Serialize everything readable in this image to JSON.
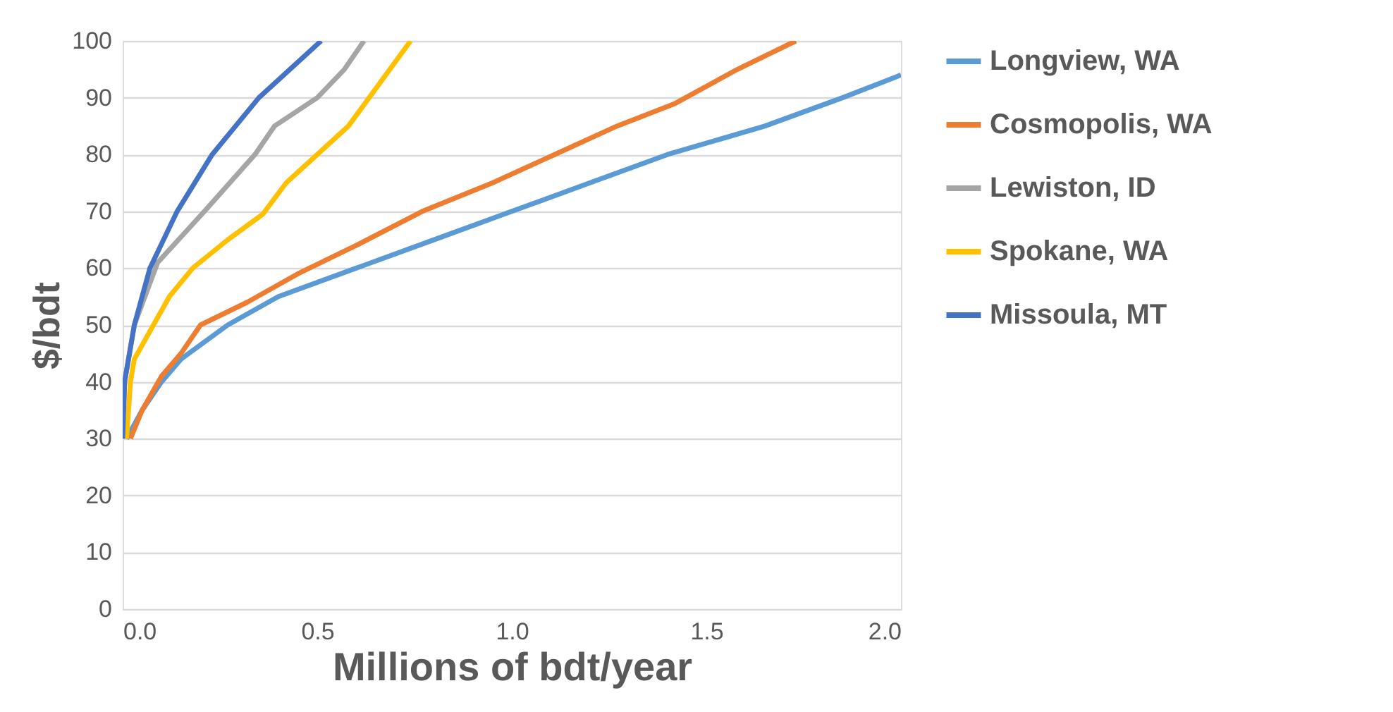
{
  "chart_data": {
    "type": "line",
    "xlabel": "Millions of bdt/year",
    "ylabel": "$/bdt",
    "xlim": [
      0,
      2.0
    ],
    "xticks": [
      {
        "value": 0,
        "label": "0.0"
      },
      {
        "value": 0.5,
        "label": "0.5"
      },
      {
        "value": 1,
        "label": "1.0"
      },
      {
        "value": 1.5,
        "label": "1.5"
      },
      {
        "value": 2,
        "label": "2.0"
      }
    ],
    "ylim": [
      0,
      100
    ],
    "yticks": [
      0,
      10,
      20,
      30,
      40,
      50,
      60,
      70,
      80,
      90,
      100
    ],
    "grid": "y",
    "legend": "right",
    "marker": "none",
    "line_style": "solid",
    "series": [
      {
        "name": "Longview, WA",
        "color": "#5b9bd5",
        "x": [
          0.01,
          0.05,
          0.1,
          0.15,
          0.27,
          0.4,
          0.6,
          0.8,
          1.0,
          1.2,
          1.4,
          1.65,
          1.85,
          2.0
        ],
        "values": [
          30,
          35,
          40,
          44,
          50,
          55,
          60,
          65,
          70,
          75,
          80,
          85,
          90,
          94
        ]
      },
      {
        "name": "Cosmopolis, WA",
        "color": "#ed7d31",
        "x": [
          0.02,
          0.05,
          0.1,
          0.15,
          0.2,
          0.32,
          0.45,
          0.6,
          0.77,
          0.95,
          1.11,
          1.27,
          1.42,
          1.58,
          1.73
        ],
        "values": [
          30,
          35,
          41,
          45,
          50,
          54,
          59,
          64,
          70,
          75,
          80,
          85,
          89,
          95,
          100
        ]
      },
      {
        "name": "Lewiston, ID",
        "color": "#a5a5a5",
        "x": [
          0,
          0.005,
          0.03,
          0.09,
          0.21,
          0.34,
          0.39,
          0.5,
          0.57,
          0.62
        ],
        "values": [
          30,
          40,
          50,
          61,
          70,
          80,
          85,
          90,
          95,
          100
        ]
      },
      {
        "name": "Spokane, WA",
        "color": "#ffc000",
        "x": [
          0.01,
          0.02,
          0.03,
          0.12,
          0.18,
          0.27,
          0.36,
          0.42,
          0.58,
          0.74
        ],
        "values": [
          30,
          40,
          44,
          55,
          60,
          65,
          69.5,
          75,
          85,
          100
        ]
      },
      {
        "name": "Missoula, MT",
        "color": "#4472c4",
        "x": [
          0,
          0.005,
          0.03,
          0.07,
          0.14,
          0.23,
          0.35,
          0.51
        ],
        "values": [
          30,
          40,
          50,
          60,
          70,
          80,
          90,
          100
        ]
      }
    ]
  }
}
